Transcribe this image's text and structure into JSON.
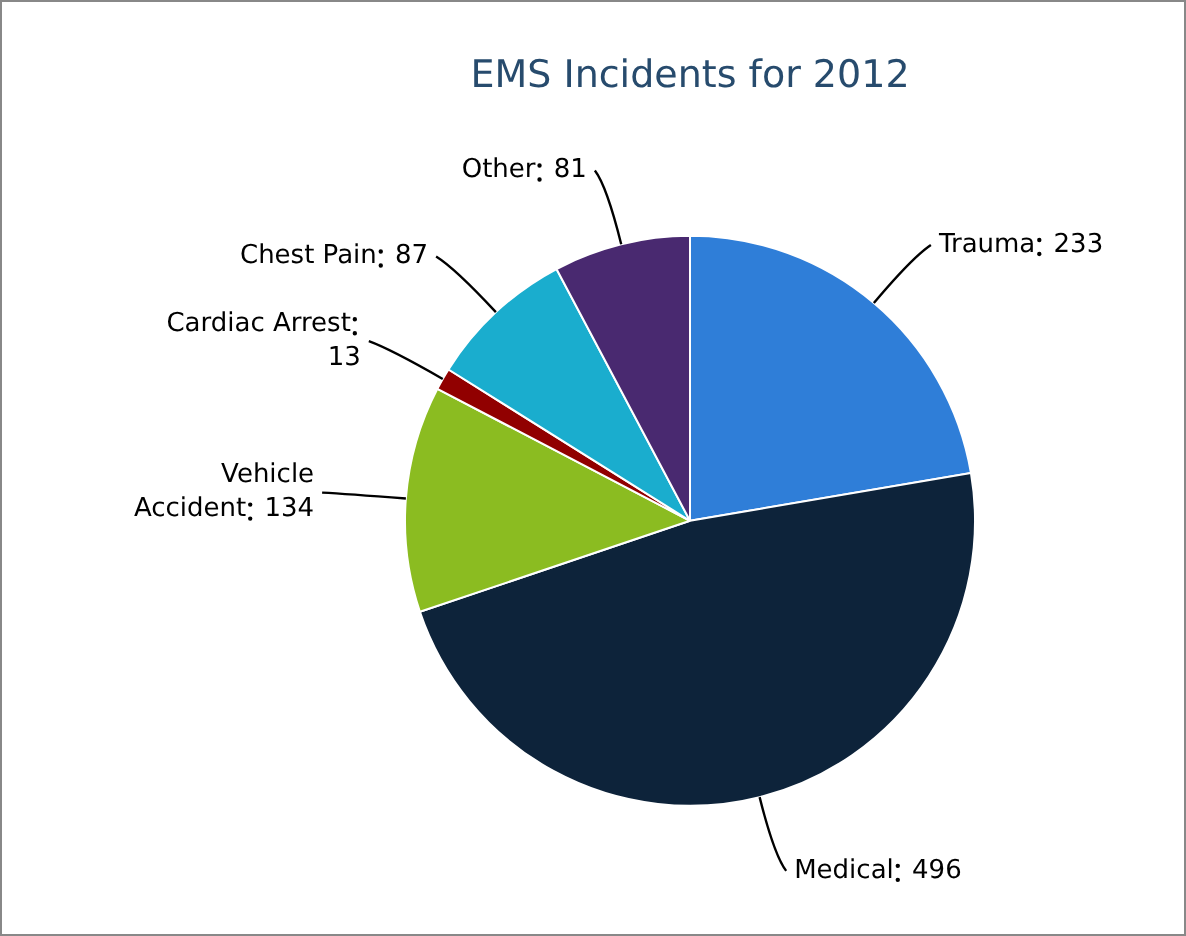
{
  "chart_data": {
    "type": "pie",
    "title": "EMS Incidents for 2012",
    "categories": [
      "Trauma",
      "Medical",
      "Vehicle Accident",
      "Cardiac Arrest",
      "Chest Pain",
      "Other"
    ],
    "values": [
      233,
      496,
      134,
      13,
      87,
      81
    ],
    "colors": [
      "#2f7ed8",
      "#0d233a",
      "#8bbc21",
      "#910000",
      "#1aadce",
      "#492970"
    ],
    "data_labels": true
  }
}
